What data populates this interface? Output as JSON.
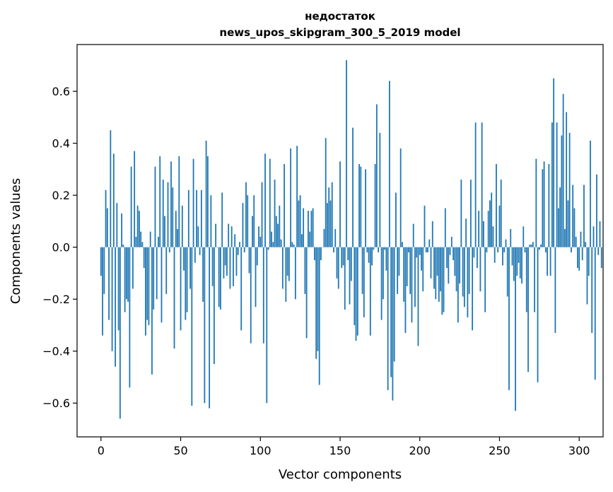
{
  "chart_data": {
    "type": "bar",
    "title_line1": "недостаток",
    "title_line2": "news_upos_skipgram_300_5_2019 model",
    "xlabel": "Vector components",
    "ylabel": "Components values",
    "xlim": [
      -15,
      315
    ],
    "ylim": [
      -0.73,
      0.78
    ],
    "x_ticks": [
      0,
      50,
      100,
      150,
      200,
      250,
      300
    ],
    "x_tick_labels": [
      "0",
      "50",
      "100",
      "150",
      "200",
      "250",
      "300"
    ],
    "y_ticks": [
      -0.6,
      -0.4,
      -0.2,
      0.0,
      0.2,
      0.4,
      0.6
    ],
    "y_tick_labels": [
      "−0.6",
      "−0.4",
      "−0.2",
      "0.0",
      "0.2",
      "0.4",
      "0.6"
    ],
    "bar_color": "#1f77b4",
    "values": [
      -0.11,
      -0.34,
      -0.18,
      0.22,
      0.15,
      -0.28,
      0.45,
      -0.4,
      0.36,
      -0.46,
      0.17,
      -0.32,
      -0.66,
      0.13,
      0.01,
      -0.25,
      -0.2,
      -0.21,
      -0.54,
      0.31,
      -0.16,
      0.37,
      0.04,
      0.16,
      0.14,
      0.06,
      0.02,
      -0.08,
      -0.34,
      -0.28,
      -0.3,
      0.06,
      -0.49,
      -0.24,
      0.31,
      -0.2,
      0.04,
      0.35,
      -0.29,
      0.26,
      0.12,
      -0.18,
      0.25,
      -0.02,
      0.33,
      0.23,
      -0.39,
      0.14,
      0.07,
      0.35,
      -0.32,
      0.16,
      -0.09,
      -0.28,
      -0.25,
      0.22,
      -0.16,
      -0.61,
      0.34,
      -0.06,
      0.22,
      0.08,
      -0.03,
      0.22,
      -0.21,
      -0.6,
      0.41,
      0.35,
      -0.62,
      0.2,
      -0.15,
      -0.45,
      0.09,
      0.0,
      -0.23,
      -0.24,
      0.21,
      -0.12,
      -0.07,
      -0.11,
      0.09,
      -0.16,
      0.08,
      -0.15,
      0.05,
      -0.11,
      -0.03,
      0.02,
      -0.32,
      0.17,
      -0.02,
      0.25,
      0.2,
      -0.1,
      -0.37,
      0.12,
      0.2,
      -0.23,
      -0.07,
      0.08,
      0.04,
      0.25,
      -0.37,
      0.36,
      -0.6,
      -0.01,
      0.34,
      0.06,
      0.02,
      0.26,
      0.12,
      0.09,
      0.16,
      0.03,
      -0.16,
      0.32,
      -0.21,
      -0.11,
      -0.13,
      0.38,
      0.02,
      0.01,
      -0.2,
      0.39,
      0.18,
      0.2,
      0.05,
      0.15,
      -0.18,
      -0.35,
      0.14,
      0.06,
      0.14,
      0.15,
      -0.05,
      -0.43,
      -0.4,
      -0.53,
      -0.05,
      0.0,
      0.07,
      0.42,
      0.17,
      0.23,
      0.18,
      0.25,
      -0.02,
      0.07,
      -0.12,
      -0.16,
      0.33,
      -0.08,
      -0.07,
      -0.24,
      0.72,
      -0.05,
      -0.22,
      -0.13,
      0.46,
      -0.3,
      -0.36,
      -0.34,
      0.32,
      0.31,
      -0.18,
      -0.27,
      0.3,
      -0.02,
      -0.06,
      -0.34,
      -0.07,
      -0.01,
      0.32,
      0.55,
      -0.02,
      0.44,
      -0.28,
      -0.2,
      -0.01,
      -0.09,
      -0.55,
      0.64,
      -0.5,
      -0.59,
      -0.44,
      0.21,
      -0.18,
      -0.11,
      0.38,
      0.02,
      -0.21,
      -0.33,
      -0.15,
      -0.02,
      -0.18,
      -0.29,
      0.09,
      -0.23,
      -0.04,
      -0.38,
      -0.03,
      -0.09,
      -0.17,
      0.16,
      -0.02,
      -0.02,
      0.03,
      -0.12,
      0.1,
      -0.16,
      -0.2,
      -0.11,
      -0.21,
      -0.17,
      -0.26,
      -0.25,
      0.15,
      -0.08,
      -0.14,
      -0.03,
      0.04,
      -0.05,
      -0.11,
      -0.17,
      -0.29,
      -0.14,
      0.26,
      -0.19,
      -0.23,
      0.11,
      -0.27,
      -0.18,
      0.26,
      -0.32,
      -0.04,
      0.48,
      -0.08,
      0.14,
      -0.17,
      0.48,
      0.1,
      -0.25,
      -0.02,
      0.14,
      0.18,
      0.21,
      0.08,
      -0.06,
      0.32,
      -0.02,
      0.16,
      0.26,
      -0.07,
      -0.02,
      0.03,
      -0.19,
      -0.55,
      0.07,
      -0.07,
      -0.13,
      -0.63,
      -0.11,
      -0.06,
      -0.12,
      -0.14,
      0.08,
      -0.02,
      -0.25,
      -0.48,
      0.01,
      0.01,
      0.02,
      -0.25,
      0.34,
      -0.52,
      -0.01,
      0.01,
      0.3,
      0.33,
      -0.02,
      -0.11,
      0.32,
      -0.11,
      0.48,
      0.65,
      -0.33,
      0.48,
      0.15,
      0.23,
      0.43,
      0.59,
      0.07,
      0.52,
      0.18,
      0.44,
      -0.02,
      0.24,
      0.15,
      0.04,
      -0.08,
      -0.09,
      0.06,
      -0.05,
      0.24,
      0.02,
      -0.22,
      -0.11,
      0.41,
      -0.33,
      0.08,
      -0.51,
      0.28,
      -0.03,
      0.1,
      -0.08
    ]
  }
}
